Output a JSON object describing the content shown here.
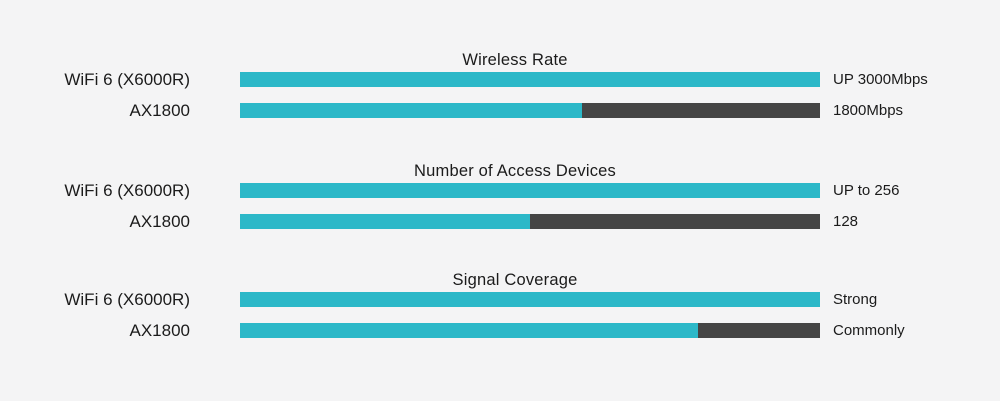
{
  "colors": {
    "background": "#f4f4f5",
    "bar_primary": "#2cb8c8",
    "bar_secondary": "#454545",
    "text": "#1b1b1b"
  },
  "chart_data": {
    "type": "bar",
    "orientation": "horizontal",
    "track_full_pct": 100,
    "sections": [
      {
        "title": "Wireless Rate",
        "rows": [
          {
            "label": "WiFi 6 (X6000R)",
            "value": "UP 3000Mbps",
            "fill_pct": 100
          },
          {
            "label": "AX1800",
            "value": "1800Mbps",
            "fill_pct": 59
          }
        ]
      },
      {
        "title": "Number of Access Devices",
        "rows": [
          {
            "label": "WiFi 6 (X6000R)",
            "value": "UP to 256",
            "fill_pct": 100
          },
          {
            "label": "AX1800",
            "value": "128",
            "fill_pct": 50
          }
        ]
      },
      {
        "title": "Signal Coverage",
        "rows": [
          {
            "label": "WiFi 6 (X6000R)",
            "value": "Strong",
            "fill_pct": 100
          },
          {
            "label": "AX1800",
            "value": "Commonly",
            "fill_pct": 79
          }
        ]
      }
    ]
  }
}
